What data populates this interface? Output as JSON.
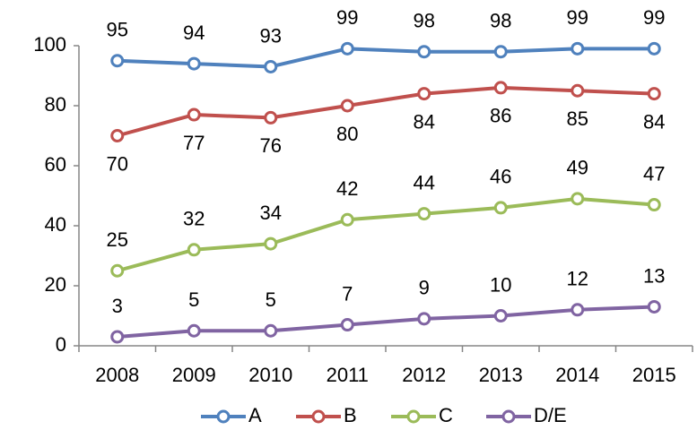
{
  "chart_data": {
    "type": "line",
    "categories": [
      "2008",
      "2009",
      "2010",
      "2011",
      "2012",
      "2013",
      "2014",
      "2015"
    ],
    "series": [
      {
        "name": "A",
        "color": "#4f81bd",
        "values": [
          95,
          94,
          93,
          99,
          98,
          98,
          99,
          99
        ],
        "label_position": "above"
      },
      {
        "name": "B",
        "color": "#c0504d",
        "values": [
          70,
          77,
          76,
          80,
          84,
          86,
          85,
          84
        ],
        "label_position": "below"
      },
      {
        "name": "C",
        "color": "#9bbb59",
        "values": [
          25,
          32,
          34,
          42,
          44,
          46,
          49,
          47
        ],
        "label_position": "above"
      },
      {
        "name": "D/E",
        "color": "#8064a2",
        "values": [
          3,
          5,
          5,
          7,
          9,
          10,
          12,
          13
        ],
        "label_position": "above"
      }
    ],
    "ylim": [
      0,
      100
    ],
    "yticks": [
      0,
      20,
      40,
      60,
      80,
      100
    ],
    "grid": false,
    "legend": "bottom"
  }
}
